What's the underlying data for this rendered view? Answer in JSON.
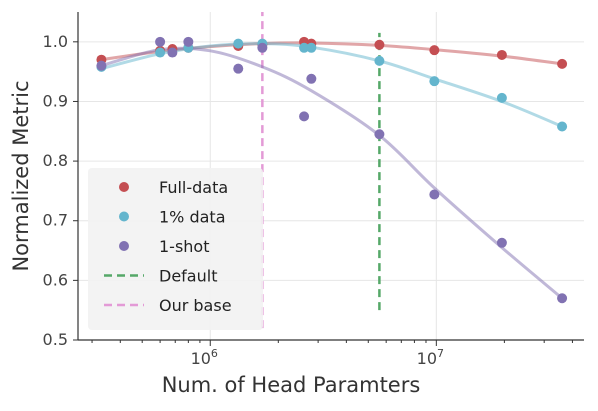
{
  "chart_data": {
    "type": "scatter",
    "xlabel": "Num. of Head Paramters",
    "ylabel": "Normalized Metric",
    "xscale": "log",
    "xlim": [
      260000,
      45000000
    ],
    "ylim": [
      0.5,
      1.05
    ],
    "yticks": [
      0.5,
      0.6,
      0.7,
      0.8,
      0.9,
      1.0
    ],
    "ytick_labels": [
      "0.5",
      "0.6",
      "0.7",
      "0.8",
      "0.9",
      "1.0"
    ],
    "xticks": [
      1000000,
      10000000
    ],
    "xtick_labels": [
      {
        "base": "10",
        "exp": "6"
      },
      {
        "base": "10",
        "exp": "7"
      }
    ],
    "grid": true,
    "legend_position": "lower-left",
    "series": [
      {
        "name": "Full-data",
        "color": "#c44e52",
        "points": [
          [
            330000,
            0.97
          ],
          [
            600000,
            0.985
          ],
          [
            680000,
            0.988
          ],
          [
            800000,
            0.99
          ],
          [
            1330000,
            0.993
          ],
          [
            1700000,
            0.995
          ],
          [
            2600000,
            1.0
          ],
          [
            2800000,
            0.997
          ],
          [
            5600000,
            0.995
          ],
          [
            9800000,
            0.986
          ],
          [
            19500000,
            0.978
          ],
          [
            36000000,
            0.963
          ]
        ],
        "fit": [
          [
            330000,
            0.97
          ],
          [
            600000,
            0.984
          ],
          [
            1000000,
            0.992
          ],
          [
            1700000,
            0.997
          ],
          [
            2800000,
            0.998
          ],
          [
            5600000,
            0.994
          ],
          [
            9800000,
            0.987
          ],
          [
            19500000,
            0.976
          ],
          [
            36000000,
            0.963
          ]
        ]
      },
      {
        "name": "1% data",
        "color": "#64b5cd",
        "points": [
          [
            330000,
            0.958
          ],
          [
            600000,
            0.982
          ],
          [
            800000,
            0.99
          ],
          [
            1330000,
            0.997
          ],
          [
            1700000,
            0.997
          ],
          [
            2600000,
            0.99
          ],
          [
            2800000,
            0.99
          ],
          [
            5600000,
            0.968
          ],
          [
            9800000,
            0.934
          ],
          [
            19500000,
            0.906
          ],
          [
            36000000,
            0.858
          ]
        ],
        "fit": [
          [
            330000,
            0.955
          ],
          [
            600000,
            0.98
          ],
          [
            1000000,
            0.993
          ],
          [
            1700000,
            0.997
          ],
          [
            2800000,
            0.991
          ],
          [
            5600000,
            0.968
          ],
          [
            9800000,
            0.938
          ],
          [
            19500000,
            0.9
          ],
          [
            36000000,
            0.858
          ]
        ]
      },
      {
        "name": "1-shot",
        "color": "#8172b2",
        "points": [
          [
            330000,
            0.96
          ],
          [
            600000,
            1.0
          ],
          [
            680000,
            0.982
          ],
          [
            800000,
            1.0
          ],
          [
            1330000,
            0.955
          ],
          [
            1700000,
            0.99
          ],
          [
            2600000,
            0.875
          ],
          [
            2800000,
            0.938
          ],
          [
            5600000,
            0.845
          ],
          [
            9800000,
            0.744
          ],
          [
            19500000,
            0.663
          ],
          [
            36000000,
            0.57
          ]
        ],
        "fit": [
          [
            330000,
            0.96
          ],
          [
            600000,
            0.987
          ],
          [
            1000000,
            0.985
          ],
          [
            1700000,
            0.958
          ],
          [
            2800000,
            0.918
          ],
          [
            5600000,
            0.843
          ],
          [
            9800000,
            0.755
          ],
          [
            19500000,
            0.655
          ],
          [
            36000000,
            0.57
          ]
        ]
      }
    ],
    "reference_lines": [
      {
        "name": "Default",
        "x": 5600000,
        "ymin": 0.55,
        "ymax": 1.015,
        "color": "#55a868"
      },
      {
        "name": "Our base",
        "x": 1700000,
        "ymin": 0.52,
        "ymax": 1.05,
        "color": "#e39ad6"
      }
    ]
  }
}
